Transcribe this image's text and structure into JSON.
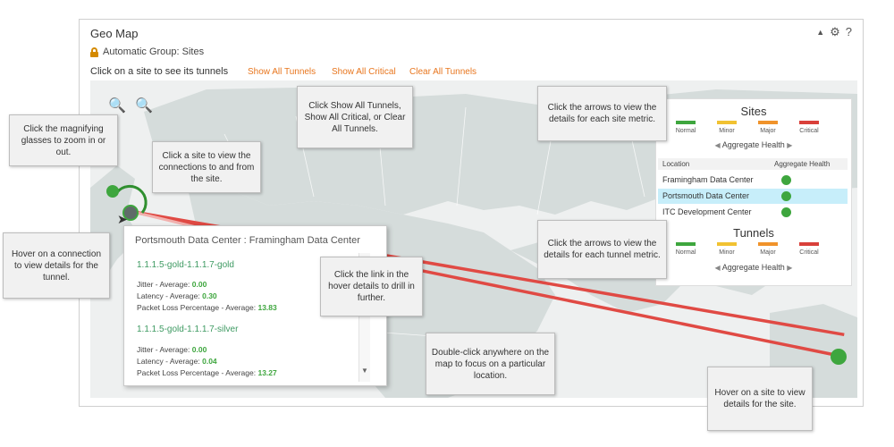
{
  "panel": {
    "title": "Geo Map",
    "group": "Automatic Group: Sites",
    "instructions": "Click on a site to see its tunnels",
    "links": {
      "show_all_tunnels": "Show All Tunnels",
      "show_all_critical": "Show All Critical",
      "clear_all_tunnels": "Clear All Tunnels"
    },
    "controls": {
      "collapse": "▲",
      "settings": "⚙",
      "help": "?"
    }
  },
  "legend": {
    "sites_title": "Sites",
    "tunnels_title": "Tunnels",
    "health_levels": [
      {
        "label": "Normal",
        "color": "#3ea63e"
      },
      {
        "label": "Minor",
        "color": "#f1c232"
      },
      {
        "label": "Major",
        "color": "#f0932b"
      },
      {
        "label": "Critical",
        "color": "#d9403a"
      }
    ],
    "aggregate_label": "Aggregate Health",
    "prev_arrow": "◀",
    "next_arrow": "▶",
    "table_headers": {
      "location": "Location",
      "health": "Aggregate Health"
    },
    "locations": [
      {
        "name": "Framingham Data Center"
      },
      {
        "name": "Portsmouth Data Center"
      },
      {
        "name": "ITC Development Center"
      }
    ]
  },
  "hover": {
    "title": "Portsmouth Data Center : Framingham Data Center",
    "tunnels": [
      {
        "name": "1.1.1.5-gold-1.1.1.7-gold",
        "metrics": [
          {
            "label": "Jitter - Average:",
            "value": "0.00"
          },
          {
            "label": "Latency - Average:",
            "value": "0.30"
          },
          {
            "label": "Packet Loss Percentage - Average:",
            "value": "13.83"
          }
        ]
      },
      {
        "name": "1.1.1.5-gold-1.1.1.7-silver",
        "metrics": [
          {
            "label": "Jitter - Average:",
            "value": "0.00"
          },
          {
            "label": "Latency - Average:",
            "value": "0.04"
          },
          {
            "label": "Packet Loss Percentage - Average:",
            "value": "13.27"
          }
        ]
      }
    ],
    "scroll_down": "▼"
  },
  "callouts": {
    "zoom": "Click the magnifying glasses to zoom in or out.",
    "site": "Click a site to view the connections to and from the site.",
    "show_all": "Click Show All Tunnels, Show All Critical, or Clear All Tunnels.",
    "site_arrows": "Click the arrows to view the details for each site metric.",
    "tunnel_arrows": "Click the arrows to view the details for each tunnel metric.",
    "hover_connection": "Hover on a connection to view details for the tunnel.",
    "drill": "Click the link in the hover details to drill in further.",
    "double_click": "Double-click anywhere on the map to focus on a particular location.",
    "hover_site": "Hover on a site to view details for the site."
  },
  "zoom_icons": {
    "zoom_in": "🔍",
    "zoom_out": "🔍"
  },
  "colors": {
    "accent_link": "#e8761e",
    "tunnel_line": "#e04a44",
    "site": "#3ea63e",
    "selected_row": "#c7eefa"
  }
}
